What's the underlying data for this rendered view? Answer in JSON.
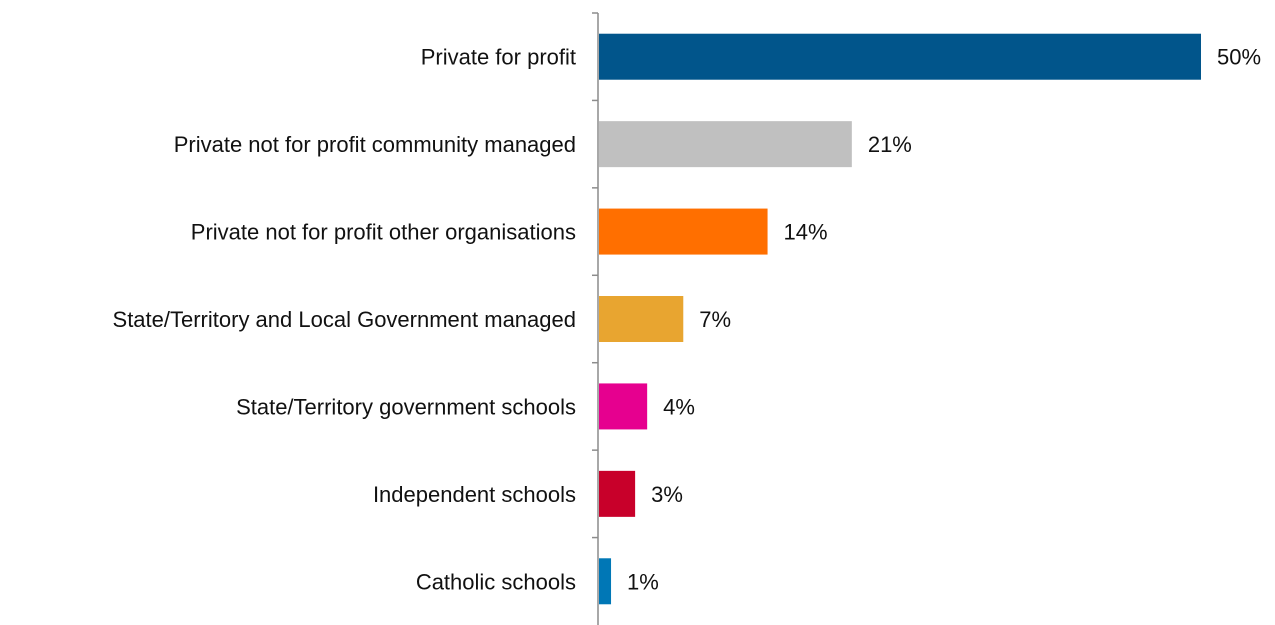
{
  "chart_data": {
    "type": "bar",
    "orientation": "horizontal",
    "categories": [
      "Private for profit",
      "Private not for profit community managed",
      "Private not for profit other organisations",
      "State/Territory and Local Government managed",
      "State/Territory government schools",
      "Independent schools",
      "Catholic schools"
    ],
    "values": [
      50,
      21,
      14,
      7,
      4,
      3,
      1
    ],
    "value_labels": [
      "50%",
      "21%",
      "14%",
      "7%",
      "4%",
      "3%",
      "1%"
    ],
    "colors": [
      "#01558B",
      "#C0C0C0",
      "#FF6F00",
      "#E8A530",
      "#E6008F",
      "#C8002A",
      "#0077B6"
    ],
    "unit": "%",
    "xlim": [
      0,
      50
    ],
    "grid": false,
    "legend": "none"
  }
}
